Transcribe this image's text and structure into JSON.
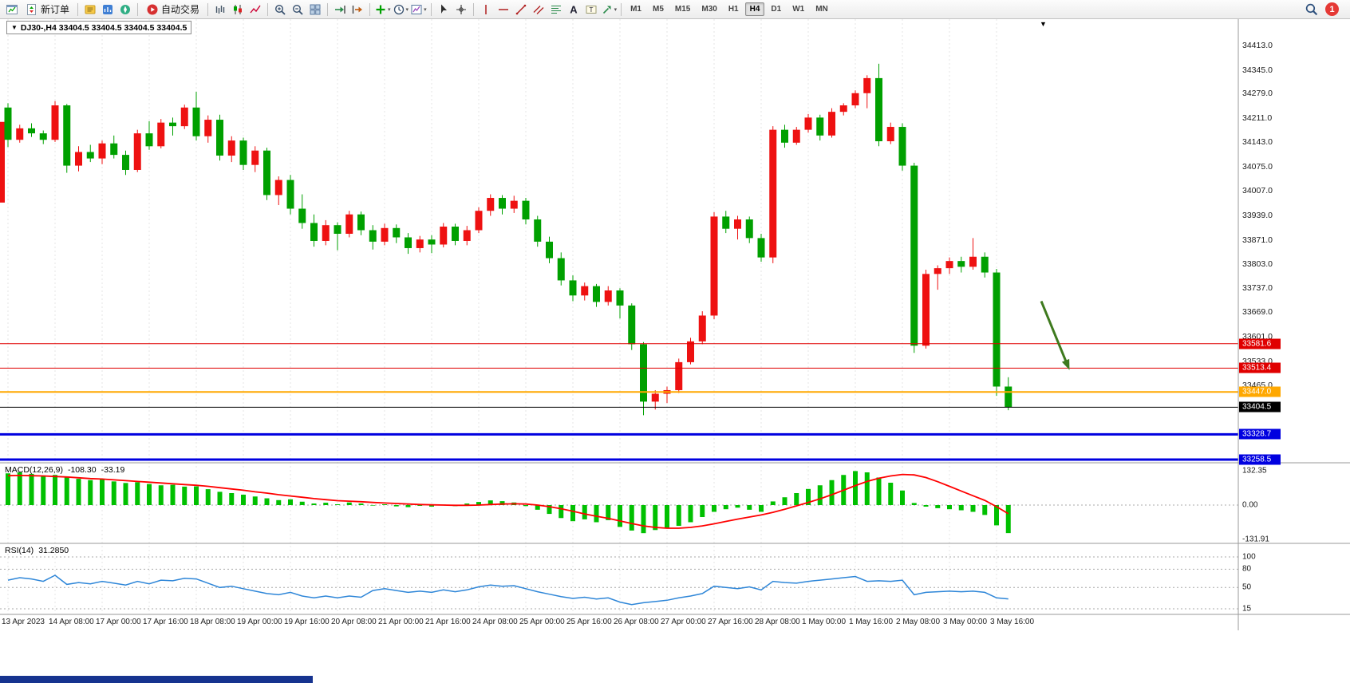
{
  "toolbar": {
    "items": [
      {
        "type": "icon",
        "name": "new-chart-icon"
      },
      {
        "type": "button",
        "name": "new-order-button",
        "icon": "new-order-icon",
        "label": "新订单"
      },
      {
        "type": "sep"
      },
      {
        "type": "icon",
        "name": "metaeditor-icon"
      },
      {
        "type": "icon",
        "name": "market-watch-icon"
      },
      {
        "type": "icon",
        "name": "navigator-icon"
      },
      {
        "type": "sep"
      },
      {
        "type": "button",
        "name": "autotrading-button",
        "icon": "autotrading-icon",
        "label": "自动交易"
      },
      {
        "type": "sep"
      },
      {
        "type": "icon",
        "name": "bars-chart-icon"
      },
      {
        "type": "icon",
        "name": "candles-chart-icon"
      },
      {
        "type": "icon",
        "name": "line-chart-icon"
      },
      {
        "type": "sep"
      },
      {
        "type": "icon",
        "name": "zoom-in-icon"
      },
      {
        "type": "icon",
        "name": "zoom-out-icon"
      },
      {
        "type": "icon",
        "name": "tile-windows-icon"
      },
      {
        "type": "sep"
      },
      {
        "type": "icon",
        "name": "auto-scroll-icon"
      },
      {
        "type": "icon",
        "name": "chart-shift-icon"
      },
      {
        "type": "sep"
      },
      {
        "type": "icon",
        "name": "indicators-icon",
        "dropdown": true
      },
      {
        "type": "icon",
        "name": "periods-icon",
        "dropdown": true
      },
      {
        "type": "icon",
        "name": "templates-icon",
        "dropdown": true
      },
      {
        "type": "sep"
      },
      {
        "type": "icon",
        "name": "cursor-icon"
      },
      {
        "type": "icon",
        "name": "crosshair-icon"
      },
      {
        "type": "sep"
      },
      {
        "type": "icon",
        "name": "vline-icon"
      },
      {
        "type": "icon",
        "name": "hline-icon"
      },
      {
        "type": "icon",
        "name": "trendline-icon"
      },
      {
        "type": "icon",
        "name": "channel-icon"
      },
      {
        "type": "icon",
        "name": "fibonacci-icon"
      },
      {
        "type": "icon",
        "name": "text-icon"
      },
      {
        "type": "icon",
        "name": "label-icon"
      },
      {
        "type": "icon",
        "name": "arrows-tool-icon",
        "dropdown": true
      },
      {
        "type": "sep"
      }
    ],
    "timeframes": [
      "M1",
      "M5",
      "M15",
      "M30",
      "H1",
      "H4",
      "D1",
      "W1",
      "MN"
    ],
    "active_timeframe": "H4",
    "notification_count": "1"
  },
  "chart": {
    "title": "DJ30-,H4 33404.5 33404.5 33404.5 33404.5"
  },
  "price_scale": {
    "ticks": [
      "34413.0",
      "34345.0",
      "34279.0",
      "34211.0",
      "34143.0",
      "34075.0",
      "34007.0",
      "33939.0",
      "33871.0",
      "33803.0",
      "33737.0",
      "33669.0",
      "33601.0",
      "33533.0",
      "33465.0"
    ]
  },
  "chart_data": {
    "type": "candlestick",
    "symbol": "DJ30-",
    "timeframe": "H4",
    "up_color": "#ee1111",
    "down_color": "#00a000",
    "bars_per_label": 4,
    "x_labels": [
      "13 Apr 2023",
      "14 Apr 08:00",
      "17 Apr 00:00",
      "17 Apr 16:00",
      "18 Apr 08:00",
      "19 Apr 00:00",
      "19 Apr 16:00",
      "20 Apr 08:00",
      "21 Apr 00:00",
      "21 Apr 16:00",
      "24 Apr 08:00",
      "25 Apr 00:00",
      "25 Apr 16:00",
      "26 Apr 08:00",
      "27 Apr 00:00",
      "27 Apr 16:00",
      "28 Apr 08:00",
      "1 May 00:00",
      "1 May 16:00",
      "2 May 08:00",
      "3 May 00:00",
      "3 May 16:00"
    ],
    "left_edge_partial_candle": {
      "high": 34200,
      "low": 33975,
      "direction": "up"
    },
    "candles": [
      [
        34240,
        34252,
        34130,
        34150
      ],
      [
        34150,
        34192,
        34142,
        34182
      ],
      [
        34182,
        34196,
        34158,
        34168
      ],
      [
        34168,
        34176,
        34138,
        34150
      ],
      [
        34150,
        34258,
        34144,
        34246
      ],
      [
        34246,
        34250,
        34058,
        34078
      ],
      [
        34078,
        34132,
        34062,
        34116
      ],
      [
        34116,
        34136,
        34088,
        34098
      ],
      [
        34098,
        34148,
        34082,
        34140
      ],
      [
        34140,
        34162,
        34098,
        34108
      ],
      [
        34108,
        34120,
        34052,
        34066
      ],
      [
        34066,
        34178,
        34060,
        34168
      ],
      [
        34168,
        34202,
        34122,
        34132
      ],
      [
        34132,
        34208,
        34126,
        34198
      ],
      [
        34198,
        34212,
        34162,
        34188
      ],
      [
        34188,
        34248,
        34180,
        34240
      ],
      [
        34240,
        34284,
        34148,
        34160
      ],
      [
        34160,
        34218,
        34142,
        34206
      ],
      [
        34206,
        34220,
        34092,
        34106
      ],
      [
        34106,
        34160,
        34088,
        34148
      ],
      [
        34148,
        34156,
        34066,
        34080
      ],
      [
        34080,
        34132,
        34060,
        34120
      ],
      [
        34120,
        34128,
        33982,
        33996
      ],
      [
        33996,
        34048,
        33968,
        34038
      ],
      [
        34038,
        34052,
        33942,
        33958
      ],
      [
        33958,
        33998,
        33902,
        33918
      ],
      [
        33918,
        33942,
        33852,
        33868
      ],
      [
        33868,
        33926,
        33856,
        33912
      ],
      [
        33912,
        33920,
        33842,
        33888
      ],
      [
        33888,
        33952,
        33878,
        33942
      ],
      [
        33942,
        33950,
        33884,
        33898
      ],
      [
        33898,
        33912,
        33844,
        33866
      ],
      [
        33866,
        33916,
        33856,
        33904
      ],
      [
        33904,
        33914,
        33862,
        33878
      ],
      [
        33878,
        33890,
        33832,
        33848
      ],
      [
        33848,
        33882,
        33836,
        33872
      ],
      [
        33872,
        33884,
        33834,
        33858
      ],
      [
        33858,
        33918,
        33850,
        33908
      ],
      [
        33908,
        33916,
        33856,
        33868
      ],
      [
        33868,
        33910,
        33856,
        33898
      ],
      [
        33898,
        33962,
        33890,
        33952
      ],
      [
        33952,
        33998,
        33938,
        33988
      ],
      [
        33988,
        33996,
        33942,
        33958
      ],
      [
        33958,
        33994,
        33946,
        33980
      ],
      [
        33980,
        33988,
        33914,
        33928
      ],
      [
        33928,
        33938,
        33852,
        33866
      ],
      [
        33866,
        33880,
        33806,
        33820
      ],
      [
        33820,
        33836,
        33744,
        33758
      ],
      [
        33758,
        33772,
        33700,
        33716
      ],
      [
        33716,
        33752,
        33702,
        33742
      ],
      [
        33742,
        33748,
        33684,
        33698
      ],
      [
        33698,
        33742,
        33688,
        33730
      ],
      [
        33730,
        33736,
        33652,
        33688
      ],
      [
        33688,
        33694,
        33564,
        33580
      ],
      [
        33580,
        33586,
        33382,
        33420
      ],
      [
        33420,
        33452,
        33398,
        33442
      ],
      [
        33442,
        33462,
        33416,
        33452
      ],
      [
        33452,
        33540,
        33444,
        33530
      ],
      [
        33530,
        33598,
        33524,
        33588
      ],
      [
        33588,
        33672,
        33580,
        33660
      ],
      [
        33660,
        33948,
        33650,
        33936
      ],
      [
        33936,
        33952,
        33890,
        33902
      ],
      [
        33902,
        33938,
        33872,
        33928
      ],
      [
        33928,
        33936,
        33862,
        33876
      ],
      [
        33876,
        33888,
        33810,
        33822
      ],
      [
        33822,
        34188,
        33806,
        34178
      ],
      [
        34178,
        34192,
        34128,
        34142
      ],
      [
        34142,
        34186,
        34136,
        34178
      ],
      [
        34178,
        34222,
        34170,
        34212
      ],
      [
        34212,
        34220,
        34148,
        34162
      ],
      [
        34162,
        34238,
        34156,
        34228
      ],
      [
        34228,
        34252,
        34218,
        34246
      ],
      [
        34246,
        34288,
        34238,
        34280
      ],
      [
        34280,
        34330,
        34238,
        34322
      ],
      [
        34322,
        34362,
        34132,
        34146
      ],
      [
        34146,
        34198,
        34138,
        34186
      ],
      [
        34186,
        34196,
        34064,
        34078
      ],
      [
        34078,
        34086,
        33556,
        33576
      ],
      [
        33576,
        33788,
        33568,
        33776
      ],
      [
        33776,
        33800,
        33732,
        33792
      ],
      [
        33792,
        33822,
        33776,
        33812
      ],
      [
        33812,
        33824,
        33780,
        33796
      ],
      [
        33796,
        33876,
        33788,
        33824
      ],
      [
        33824,
        33836,
        33766,
        33780
      ],
      [
        33780,
        33790,
        33436,
        33462
      ],
      [
        33462,
        33488,
        33396,
        33404.5
      ]
    ],
    "horizontal_lines": [
      {
        "price": 33581.6,
        "label": "33581.6",
        "color": "#e00000",
        "width": 1
      },
      {
        "price": 33513.4,
        "label": "33513.4",
        "color": "#e00000",
        "width": 1
      },
      {
        "price": 33447.0,
        "label": "33447.0",
        "color": "#ffa800",
        "width": 2
      },
      {
        "price": 33404.5,
        "label": "33404.5",
        "color": "#000000",
        "width": 1
      },
      {
        "price": 33328.7,
        "label": "33328.7",
        "color": "#0000e0",
        "width": 3
      },
      {
        "price": 33258.5,
        "label": "33258.5",
        "color": "#0000e0",
        "width": 3
      }
    ],
    "arrow_annotation": {
      "x1_bar": 87.8,
      "price1": 33700,
      "x2_bar": 90.2,
      "price2": 33508,
      "color": "#3e7a1e",
      "width": 3
    },
    "macd": {
      "label": "MACD(12,26,9)",
      "main_value": "-108.30",
      "signal_value": "-33.19",
      "histogram_color": "#00c000",
      "signal_color": "#ff0000",
      "ylim": [
        -131.91,
        132.35
      ],
      "scale_labels": [
        "132.35",
        "0.00",
        "-131.91"
      ],
      "histogram": [
        122,
        126,
        120,
        114,
        116,
        108,
        101,
        96,
        98,
        91,
        85,
        88,
        81,
        76,
        78,
        71,
        72,
        61,
        51,
        46,
        40,
        33,
        26,
        19,
        22,
        13,
        6,
        9,
        3,
        10,
        6,
        -2,
        3,
        -5,
        -8,
        -3,
        -6,
        2,
        -4,
        6,
        12,
        18,
        15,
        10,
        -4,
        -18,
        -34,
        -50,
        -62,
        -55,
        -66,
        -58,
        -84,
        -98,
        -108,
        -96,
        -90,
        -80,
        -66,
        -46,
        -26,
        -16,
        -10,
        -18,
        -26,
        14,
        30,
        46,
        62,
        76,
        96,
        116,
        131,
        126,
        106,
        86,
        56,
        8,
        -6,
        -12,
        -16,
        -20,
        -26,
        -38,
        -78,
        -108
      ],
      "signal": [
        113,
        114,
        113,
        112,
        110,
        108,
        105,
        102,
        100,
        97,
        94,
        91,
        88,
        85,
        82,
        79,
        76,
        72,
        67,
        62,
        57,
        51,
        46,
        40,
        35,
        30,
        25,
        21,
        17,
        15,
        13,
        10,
        8,
        6,
        4,
        2,
        1,
        0,
        -1,
        -1,
        0,
        2,
        4,
        5,
        4,
        0,
        -6,
        -14,
        -24,
        -34,
        -43,
        -51,
        -61,
        -71,
        -80,
        -86,
        -89,
        -89,
        -86,
        -80,
        -72,
        -63,
        -54,
        -46,
        -38,
        -28,
        -16,
        -3,
        10,
        24,
        40,
        57,
        75,
        91,
        103,
        112,
        118,
        116,
        106,
        90,
        72,
        54,
        36,
        18,
        -6,
        -33
      ]
    },
    "rsi": {
      "label": "RSI(14)",
      "value": "31.2850",
      "line_color": "#2e86d8",
      "levels": [
        100,
        80,
        50,
        15
      ],
      "scale_labels": [
        "100",
        "80",
        "50",
        "15"
      ],
      "values": [
        62,
        66,
        64,
        60,
        70,
        55,
        58,
        56,
        60,
        57,
        54,
        60,
        56,
        62,
        61,
        65,
        64,
        57,
        50,
        52,
        48,
        44,
        40,
        38,
        42,
        36,
        33,
        36,
        33,
        36,
        34,
        45,
        48,
        45,
        42,
        44,
        42,
        46,
        43,
        46,
        51,
        54,
        52,
        53,
        48,
        43,
        39,
        35,
        32,
        34,
        31,
        33,
        26,
        22,
        25,
        27,
        29,
        33,
        36,
        40,
        52,
        50,
        48,
        51,
        46,
        60,
        58,
        57,
        60,
        62,
        64,
        66,
        68,
        60,
        61,
        60,
        62,
        38,
        42,
        43,
        44,
        43,
        44,
        42,
        33,
        31.29
      ]
    }
  }
}
